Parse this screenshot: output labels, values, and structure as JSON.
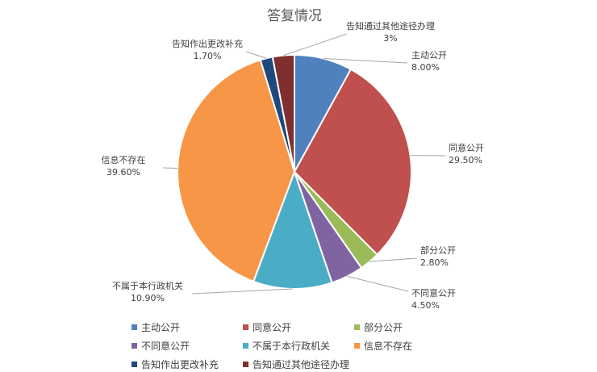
{
  "chart_data": {
    "type": "pie",
    "title": "答复情况",
    "legend_placement": "bottom",
    "slices": [
      {
        "label": "主动公开",
        "value": 8.0,
        "display": "8.00%",
        "color": "#4f81bd"
      },
      {
        "label": "同意公开",
        "value": 29.5,
        "display": "29.50%",
        "color": "#c0504d"
      },
      {
        "label": "部分公开",
        "value": 2.8,
        "display": "2.80%",
        "color": "#9bbb59"
      },
      {
        "label": "不同意公开",
        "value": 4.5,
        "display": "4.50%",
        "color": "#8064a2"
      },
      {
        "label": "不属于本行政机关",
        "value": 10.9,
        "display": "10.90%",
        "color": "#4bacc6"
      },
      {
        "label": "信息不存在",
        "value": 39.6,
        "display": "39.60%",
        "color": "#f79646"
      },
      {
        "label": "告知作出更改补充",
        "value": 1.7,
        "display": "1.70%",
        "color": "#1f497d"
      },
      {
        "label": "告知通过其他途径办理",
        "value": 3,
        "display": "3%",
        "color": "#7f2f2f"
      }
    ]
  }
}
